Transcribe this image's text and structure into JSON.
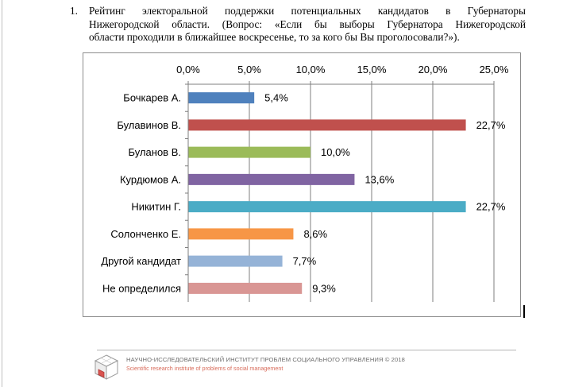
{
  "question": {
    "number": "1.",
    "lines": [
      "Рейтинг электоральной поддержки потенциальных кандидатов в Губернаторы",
      "Нижегородской области. (Вопрос: «Если бы выборы Губернатора Нижегородской",
      "области проходили в ближайшее воскресенье, то за кого бы Вы проголосовали?»)."
    ]
  },
  "chart_data": {
    "type": "bar",
    "orientation": "horizontal",
    "x_axis_position": "top",
    "xlim": [
      0,
      25
    ],
    "x_ticks": [
      0,
      5,
      10,
      15,
      20,
      25
    ],
    "x_tick_labels": [
      "0,0%",
      "5,0%",
      "10,0%",
      "15,0%",
      "20,0%",
      "25,0%"
    ],
    "grid": true,
    "categories": [
      "Бочкарев А.",
      "Булавинов В.",
      "Буланов В.",
      "Курдюмов А.",
      "Никитин Г.",
      "Солонченко Е.",
      "Другой кандидат",
      "Не определился"
    ],
    "values": [
      5.4,
      22.7,
      10.0,
      13.6,
      22.7,
      8.6,
      7.7,
      9.3
    ],
    "value_labels": [
      "5,4%",
      "22,7%",
      "10,0%",
      "13,6%",
      "22,7%",
      "8,6%",
      "7,7%",
      "9,3%"
    ],
    "colors": [
      "#4f81bd",
      "#c0504d",
      "#9bbb59",
      "#8064a2",
      "#4bacc6",
      "#f79646",
      "#95b3d7",
      "#d99694"
    ]
  },
  "footer": {
    "institute": "НАУЧНО-ИССЛЕДОВАТЕЛЬСКИЙ ИНСТИТУТ ПРОБЛЕМ СОЦИАЛЬНОГО УПРАВЛЕНИЯ  © 2018",
    "institute_en": "Scientific research institute of problems of social management"
  }
}
